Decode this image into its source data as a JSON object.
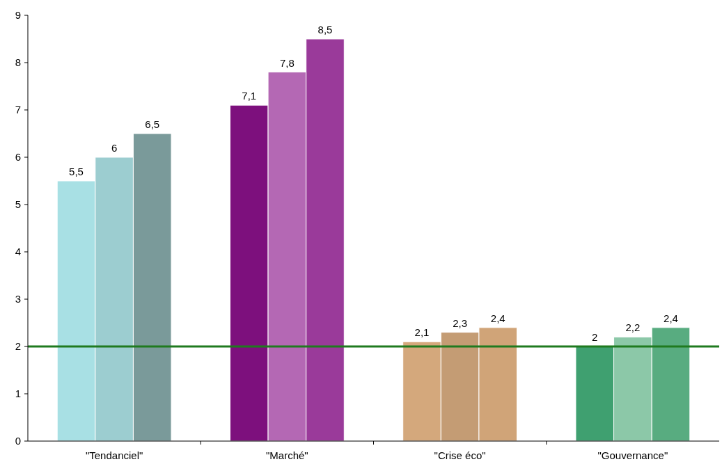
{
  "chart_data": {
    "type": "bar",
    "categories": [
      "\"Tendanciel\"",
      "\"Marché\"",
      "\"Crise éco\"",
      "\"Gouvernance\""
    ],
    "series": [
      {
        "colors": [
          "#a8e0e4",
          "#7d107d",
          "#d4a87c",
          "#3fa070"
        ],
        "values": [
          5.5,
          7.1,
          2.1,
          2.0
        ],
        "value_labels": [
          "5,5",
          "7,1",
          "2,1",
          "2"
        ]
      },
      {
        "colors": [
          "#9ccdd0",
          "#b468b4",
          "#c49c74",
          "#8cc8a8"
        ],
        "values": [
          6.0,
          7.8,
          2.3,
          2.2
        ],
        "value_labels": [
          "6",
          "7,8",
          "2,3",
          "2,2"
        ]
      },
      {
        "colors": [
          "#7a9a9a",
          "#9a3a9a",
          "#d0a478",
          "#58ac80"
        ],
        "values": [
          6.5,
          8.5,
          2.4,
          2.4
        ],
        "value_labels": [
          "6,5",
          "8,5",
          "2,4",
          "2,4"
        ]
      }
    ],
    "ylim": [
      0,
      9
    ],
    "yticks": [
      0,
      1,
      2,
      3,
      4,
      5,
      6,
      7,
      8,
      9
    ],
    "grid": false,
    "ref_lines": [
      {
        "axis": "y",
        "value": 2,
        "color": "#1f7a1f"
      }
    ]
  }
}
